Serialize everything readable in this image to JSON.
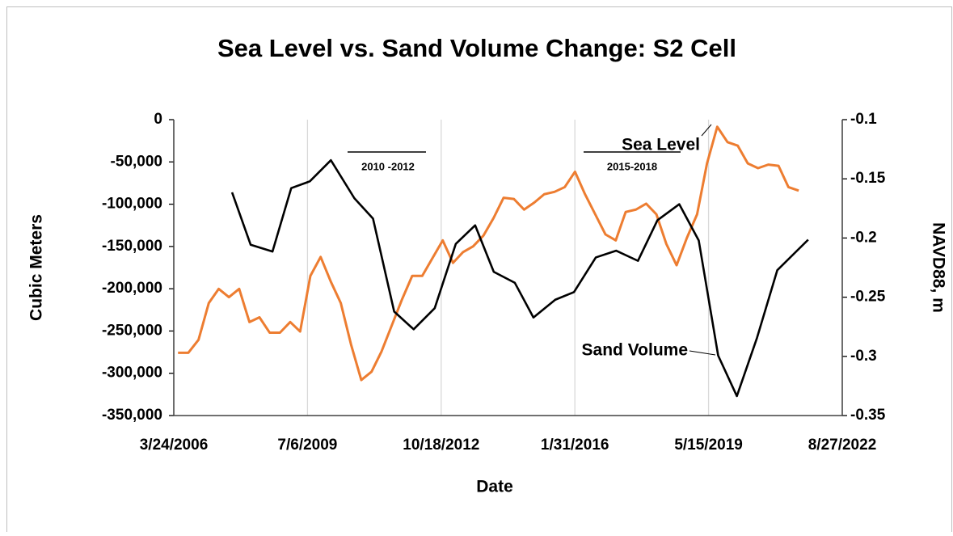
{
  "chart_data": {
    "type": "line",
    "title": "Sea Level vs. Sand Volume Change: S2 Cell",
    "x_label": "Date",
    "y_label": "Cubic Meters",
    "y2_label": "NAVD88, m",
    "xlim": [
      "3/24/2006",
      "8/27/2022"
    ],
    "xticks": [
      "3/24/2006",
      "7/6/2009",
      "10/18/2012",
      "1/31/2016",
      "5/15/2019",
      "8/27/2022"
    ],
    "ylim": [
      -350000,
      0
    ],
    "yticks": [
      {
        "value": -350000,
        "label": "-350,000"
      },
      {
        "value": -300000,
        "label": "-300,000"
      },
      {
        "value": -250000,
        "label": "-250,000"
      },
      {
        "value": -200000,
        "label": "-200,000"
      },
      {
        "value": -150000,
        "label": "-150,000"
      },
      {
        "value": -100000,
        "label": "-100,000"
      },
      {
        "value": -50000,
        "label": "-50,000"
      },
      0
    ],
    "y2lim": [
      -0.35,
      -0.1
    ],
    "y2ticks": [
      -0.35,
      -0.3,
      -0.25,
      -0.2,
      -0.15,
      -0.1
    ],
    "grid": "x",
    "annotations": [
      "2010 -2012",
      "2015-2018"
    ],
    "series": [
      {
        "name": "Sand Volume",
        "color": "#000000",
        "x": [
          "2007-08-29",
          "2008-02-12",
          "2008-08-26",
          "2009-02-10",
          "2009-07-27",
          "2010-02-01",
          "2010-08-31",
          "2011-02-14",
          "2011-08-23",
          "2012-02-14",
          "2012-08-21",
          "2013-02-26",
          "2013-08-19",
          "2014-02-02",
          "2014-08-10",
          "2015-01-24",
          "2015-08-08",
          "2016-01-23",
          "2016-08-06",
          "2017-02-04",
          "2017-08-19",
          "2018-02-10",
          "2018-08-25",
          "2019-02-16",
          "2019-08-09",
          "2020-01-24",
          "2020-07-23",
          "2021-01-21",
          "2021-10-25"
        ],
        "values": [
          -86000,
          -148000,
          -156000,
          -81000,
          -73000,
          -48000,
          -93000,
          -117000,
          -227000,
          -248000,
          -223000,
          -147000,
          -125000,
          -180000,
          -193000,
          -234000,
          -213000,
          -204000,
          -163000,
          -155000,
          -167000,
          -119000,
          -100000,
          -143000,
          -279000,
          -327000,
          -258000,
          -178000,
          -142000
        ]
      },
      {
        "name": "Sea Level",
        "color": "#ed7d31",
        "axis": "y2",
        "x": [
          "2006-05-01",
          "2006-08-01",
          "2006-11-01",
          "2007-02-01",
          "2007-05-01",
          "2007-08-01",
          "2007-11-01",
          "2008-02-01",
          "2008-05-01",
          "2008-08-01",
          "2008-11-01",
          "2009-02-01",
          "2009-05-01",
          "2009-08-01",
          "2009-11-01",
          "2010-02-01",
          "2010-05-01",
          "2010-08-01",
          "2010-11-01",
          "2011-02-01",
          "2011-05-01",
          "2011-08-01",
          "2011-11-01",
          "2012-02-01",
          "2012-05-01",
          "2012-08-01",
          "2012-11-01",
          "2013-02-01",
          "2013-05-01",
          "2013-08-01",
          "2013-11-01",
          "2014-02-01",
          "2014-05-01",
          "2014-08-01",
          "2014-11-01",
          "2015-02-01",
          "2015-05-01",
          "2015-08-01",
          "2015-11-01",
          "2016-02-01",
          "2016-05-01",
          "2016-08-01",
          "2016-11-01",
          "2017-02-01",
          "2017-05-01",
          "2017-08-01",
          "2017-11-01",
          "2018-02-01",
          "2018-05-01",
          "2018-08-01",
          "2018-11-01",
          "2019-02-01",
          "2019-05-01",
          "2019-08-01",
          "2019-11-01",
          "2020-02-01",
          "2020-05-01",
          "2020-08-01",
          "2020-11-01",
          "2021-02-01",
          "2021-05-01",
          "2021-08-01"
        ],
        "values": [
          -0.297,
          -0.297,
          -0.286,
          -0.255,
          -0.243,
          -0.25,
          -0.243,
          -0.271,
          -0.267,
          -0.28,
          -0.28,
          -0.271,
          -0.279,
          -0.232,
          -0.216,
          -0.237,
          -0.255,
          -0.29,
          -0.32,
          -0.313,
          -0.296,
          -0.274,
          -0.252,
          -0.232,
          -0.232,
          -0.217,
          -0.202,
          -0.221,
          -0.212,
          -0.207,
          -0.198,
          -0.183,
          -0.166,
          -0.167,
          -0.176,
          -0.17,
          -0.163,
          -0.161,
          -0.157,
          -0.144,
          -0.163,
          -0.18,
          -0.197,
          -0.202,
          -0.178,
          -0.176,
          -0.171,
          -0.18,
          -0.205,
          -0.223,
          -0.2,
          -0.18,
          -0.137,
          -0.106,
          -0.119,
          -0.122,
          -0.137,
          -0.141,
          -0.138,
          -0.139,
          -0.157,
          -0.16
        ]
      }
    ]
  }
}
